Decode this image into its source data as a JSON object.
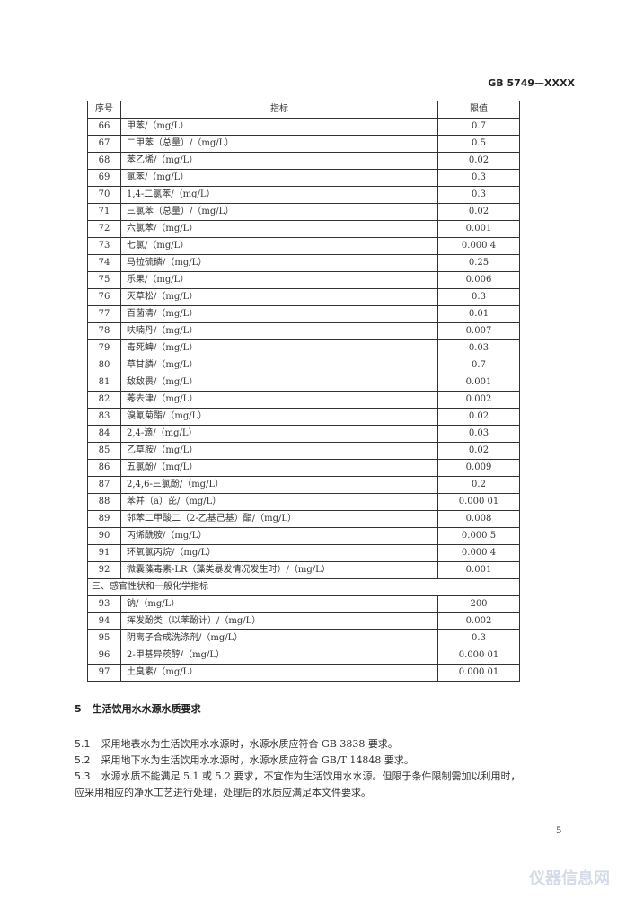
{
  "header": {
    "doc_id": "GB 5749—XXXX"
  },
  "table": {
    "headers": [
      "序号",
      "指标",
      "限值"
    ],
    "rows": [
      [
        "66",
        "甲苯/（mg/L）",
        "0.7"
      ],
      [
        "67",
        "二甲苯（总量）/（mg/L）",
        "0.5"
      ],
      [
        "68",
        "苯乙烯/（mg/L）",
        "0.02"
      ],
      [
        "69",
        "氯苯/（mg/L）",
        "0.3"
      ],
      [
        "70",
        "1,4-二氯苯/（mg/L）",
        "0.3"
      ],
      [
        "71",
        "三氯苯（总量）/（mg/L）",
        "0.02"
      ],
      [
        "72",
        "六氯苯/（mg/L）",
        "0.001"
      ],
      [
        "73",
        "七氯/（mg/L）",
        "0.000 4"
      ],
      [
        "74",
        "马拉硫磷/（mg/L）",
        "0.25"
      ],
      [
        "75",
        "乐果/（mg/L）",
        "0.006"
      ],
      [
        "76",
        "灭草松/（mg/L）",
        "0.3"
      ],
      [
        "77",
        "百菌清/（mg/L）",
        "0.01"
      ],
      [
        "78",
        "呋喃丹/（mg/L）",
        "0.007"
      ],
      [
        "79",
        "毒死蜱/（mg/L）",
        "0.03"
      ],
      [
        "80",
        "草甘膦/（mg/L）",
        "0.7"
      ],
      [
        "81",
        "敌敌畏/（mg/L）",
        "0.001"
      ],
      [
        "82",
        "莠去津/（mg/L）",
        "0.002"
      ],
      [
        "83",
        "溴氰菊酯/（mg/L）",
        "0.02"
      ],
      [
        "84",
        "2,4-滴/（mg/L）",
        "0.03"
      ],
      [
        "85",
        "乙草胺/（mg/L）",
        "0.02"
      ],
      [
        "86",
        "五氯酚/（mg/L）",
        "0.009"
      ],
      [
        "87",
        "2,4,6-三氯酚/（mg/L）",
        "0.2"
      ],
      [
        "88",
        "苯并（a）芘/（mg/L）",
        "0.000 01"
      ],
      [
        "89",
        "邻苯二甲酸二（2-乙基己基）酯/（mg/L）",
        "0.008"
      ],
      [
        "90",
        "丙烯酰胺/（mg/L）",
        "0.000 5"
      ],
      [
        "91",
        "环氧氯丙烷/（mg/L）",
        "0.000 4"
      ],
      [
        "92",
        "微囊藻毒素-LR（藻类暴发情况发生时）/（mg/L）",
        "0.001"
      ]
    ],
    "section_title": "三、感官性状和一般化学指标",
    "rows2": [
      [
        "93",
        "钠/（mg/L）",
        "200"
      ],
      [
        "94",
        "挥发酚类（以苯酚计）/（mg/L）",
        "0.002"
      ],
      [
        "95",
        "阴离子合成洗涤剂/（mg/L）",
        "0.3"
      ],
      [
        "96",
        "2-甲基异莰醇/（mg/L）",
        "0.000 01"
      ],
      [
        "97",
        "土臭素/（mg/L）",
        "0.000 01"
      ]
    ]
  },
  "section5": {
    "number": "5",
    "title": "生活饮用水水源水质要求",
    "paragraphs": [
      {
        "number": "5.1",
        "text": "采用地表水为生活饮用水水源时，水源水质应符合 GB 3838 要求。"
      },
      {
        "number": "5.2",
        "text": "采用地下水为生活饮用水水源时，水源水质应符合 GB/T 14848 要求。"
      },
      {
        "number": "5.3",
        "text": "水源水质不能满足 5.1 或 5.2 要求，不宜作为生活饮用水水源。但限于条件限制需加以利用时，",
        "cont": "应采用相应的净水工艺进行处理，处理后的水质应满足本文件要求。"
      }
    ]
  },
  "page_number": "5",
  "watermark": "仪器信息网"
}
